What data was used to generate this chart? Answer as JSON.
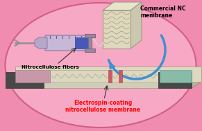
{
  "bg_color": "#f08cb0",
  "label_commercial": "Commercial NC\nmembrane",
  "label_fibers": "Nitrocellulose fibers",
  "label_electrospin": "Electrospin-coating\nnitrocellulose membrane",
  "label_color_electrospin": "#ff0000",
  "label_color_black": "#000000",
  "arrow_color": "#4090d0"
}
